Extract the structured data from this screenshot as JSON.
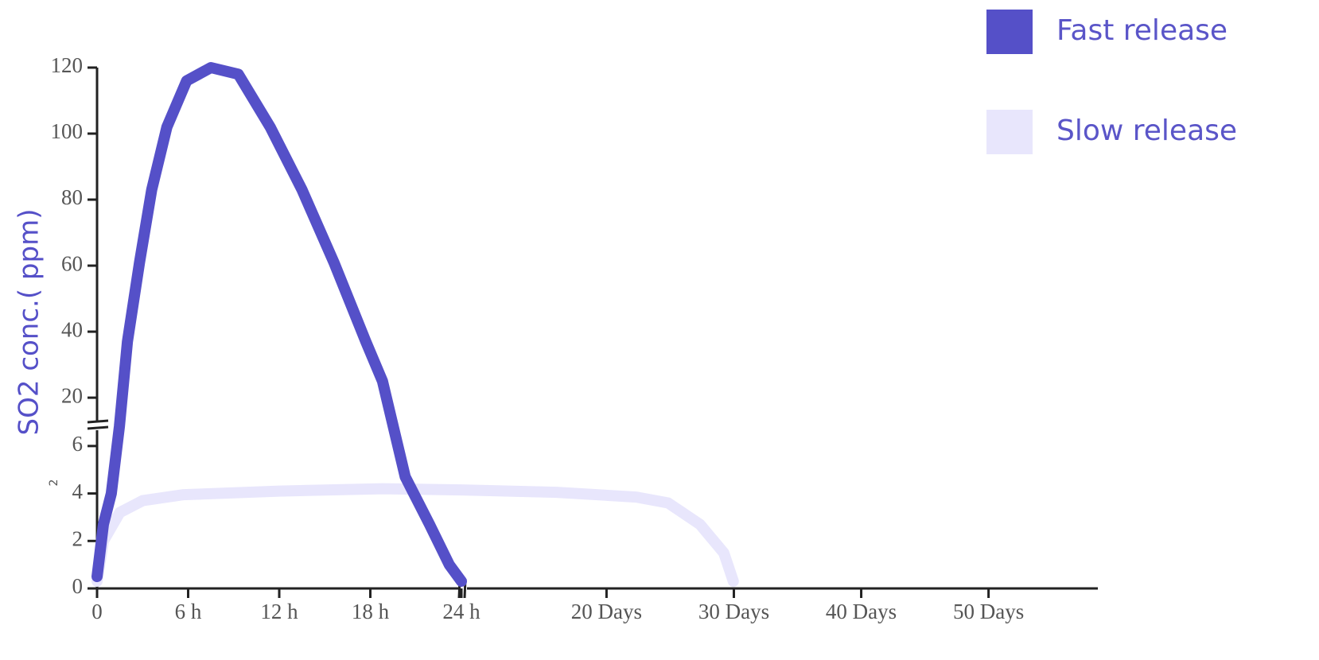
{
  "chart_data": {
    "type": "line",
    "y_label": "SO2 conc.( ppm)",
    "annotation": "2",
    "x_segments": [
      {
        "xlim": [
          0,
          24
        ],
        "xticks": [
          0,
          {
            "value": 6,
            "label": "6 h"
          },
          {
            "value": 12,
            "label": "12 h"
          },
          {
            "value": 18,
            "label": "18 h"
          },
          {
            "value": 24,
            "label": "24 h"
          }
        ]
      },
      {
        "xlim": [
          211,
          1406
        ],
        "xticks": [
          {
            "value": 480,
            "label": "20 Days"
          },
          {
            "value": 720,
            "label": "30 Days"
          },
          {
            "value": 960,
            "label": "40 Days"
          },
          {
            "value": 1200,
            "label": "50 Days"
          }
        ]
      }
    ],
    "y_segments": [
      {
        "ylim": [
          0,
          6.7
        ],
        "yticks": [
          0,
          2,
          4,
          6
        ]
      },
      {
        "ylim": [
          12.8,
          120
        ],
        "yticks": [
          20,
          40,
          60,
          80,
          100,
          120
        ]
      }
    ],
    "series": [
      {
        "name": "Fast release",
        "color": "#5550c8",
        "x": [
          0,
          0.42,
          0.94,
          1.47,
          2.0,
          2.8,
          3.6,
          4.6,
          5.9,
          7.5,
          9.3,
          11.4,
          13.5,
          15.6,
          17.7,
          18.8,
          20.3,
          21.9,
          23.2,
          24
        ],
        "values": [
          0.5,
          2.7,
          4.0,
          9,
          37,
          61,
          83,
          102,
          116,
          120,
          118,
          102,
          83,
          61,
          37,
          25,
          4.7,
          2.7,
          1.0,
          0.3
        ]
      },
      {
        "name": "Slow release",
        "color": "#e8e6fc",
        "x": [
          0,
          0.42,
          1.5,
          3.0,
          5.7,
          12,
          18.8,
          24,
          386,
          536,
          596,
          656,
          701,
          719
        ],
        "values": [
          0.3,
          2.0,
          3.2,
          3.7,
          3.95,
          4.1,
          4.2,
          4.15,
          4.05,
          3.85,
          3.6,
          2.7,
          1.5,
          0.3
        ]
      }
    ]
  }
}
